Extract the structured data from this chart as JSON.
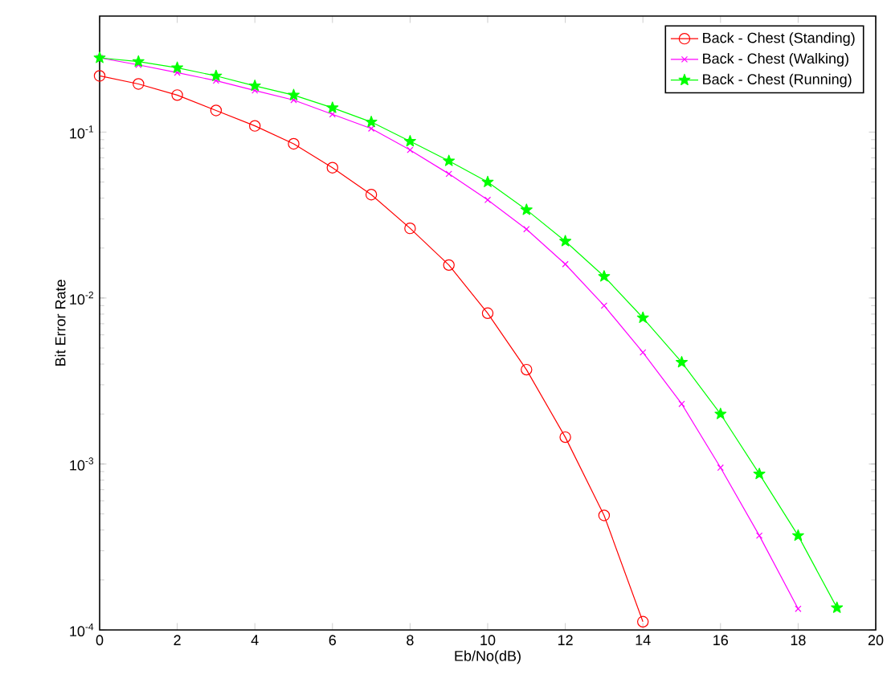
{
  "chart_data": {
    "type": "line",
    "xlabel": "Eb/No(dB)",
    "ylabel": "Bit Error Rate",
    "log": "y",
    "legend": "top right",
    "grid": false,
    "xlim": [
      0,
      20
    ],
    "xticks": [
      0,
      2,
      4,
      6,
      8,
      10,
      12,
      14,
      16,
      18,
      20
    ],
    "ylim": [
      0.0001,
      0.5
    ],
    "yticks": [
      {
        "value": 0.0001,
        "label": "10$^{-4}$"
      },
      {
        "value": 0.001,
        "label": "10$^{-3}$"
      },
      {
        "value": 0.01,
        "label": "10$^{-2}$"
      },
      {
        "value": 0.1,
        "label": "10$^{-1}$"
      }
    ],
    "series": [
      {
        "name": "Back - Chest (Standing)",
        "color": "#ff0000",
        "marker": "circle",
        "x": [
          0,
          1,
          2,
          3,
          4,
          5,
          6,
          7,
          8,
          9,
          10,
          11,
          12,
          13,
          14
        ],
        "values": [
          0.218,
          0.195,
          0.167,
          0.135,
          0.109,
          0.085,
          0.061,
          0.042,
          0.0263,
          0.0158,
          0.0081,
          0.0037,
          0.00145,
          0.00049,
          0.000112
        ]
      },
      {
        "name": "Back - Chest (Walking)",
        "color": "#ff00ff",
        "marker": "cross",
        "x": [
          0,
          1,
          2,
          3,
          4,
          5,
          6,
          7,
          8,
          9,
          10,
          11,
          12,
          13,
          14,
          15,
          16,
          17,
          18
        ],
        "values": [
          0.28,
          0.254,
          0.228,
          0.204,
          0.178,
          0.156,
          0.128,
          0.105,
          0.078,
          0.056,
          0.039,
          0.026,
          0.016,
          0.009,
          0.0047,
          0.0023,
          0.00095,
          0.00037,
          0.000134
        ]
      },
      {
        "name": "Back - Chest (Running)",
        "color": "#00ff00",
        "marker": "star",
        "x": [
          0,
          1,
          2,
          3,
          4,
          5,
          6,
          7,
          8,
          9,
          10,
          11,
          12,
          13,
          14,
          15,
          16,
          17,
          18,
          19
        ],
        "values": [
          0.28,
          0.266,
          0.244,
          0.218,
          0.19,
          0.167,
          0.14,
          0.115,
          0.088,
          0.067,
          0.05,
          0.034,
          0.022,
          0.0135,
          0.0076,
          0.0041,
          0.002,
          0.00087,
          0.00037,
          0.000136
        ]
      }
    ]
  }
}
